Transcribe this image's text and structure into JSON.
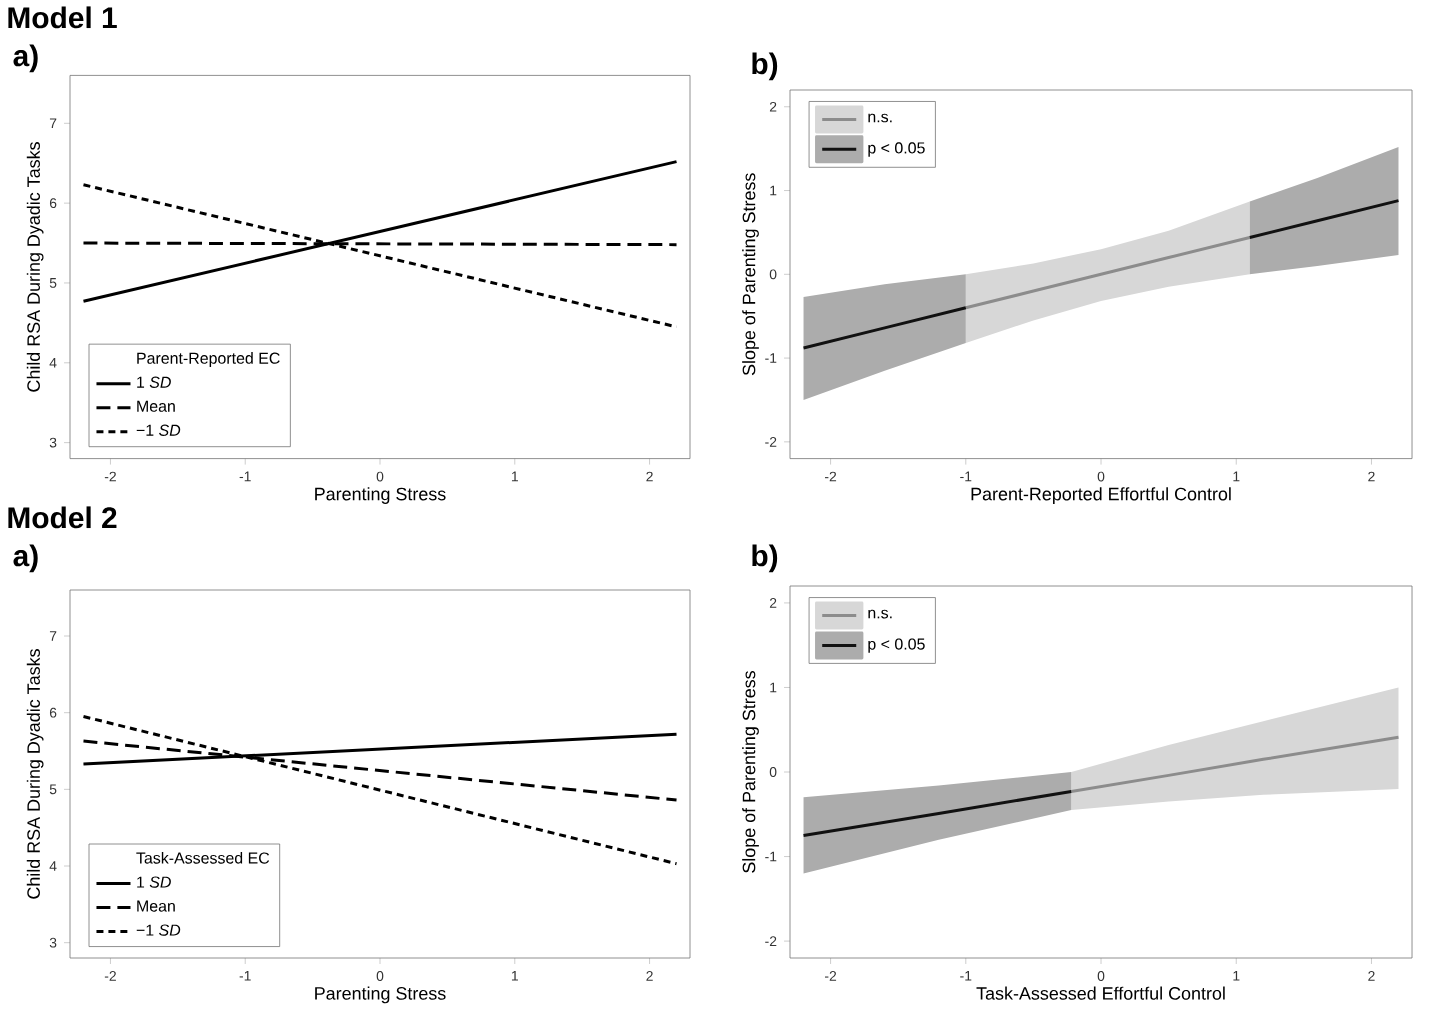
{
  "chart_data": [
    {
      "type": "line",
      "title": "Model 1",
      "subtitle": "a)",
      "xlabel": "Parenting Stress",
      "ylabel": "Child RSA During Dyadic Tasks",
      "legend_title": "Parent-Reported EC",
      "legend": "bottom left",
      "xlim": [
        -2.3,
        2.3
      ],
      "ylim": [
        2.8,
        7.6
      ],
      "xticks": [
        -2,
        -1,
        0,
        1,
        2
      ],
      "yticks": [
        3,
        4,
        5,
        6,
        7
      ],
      "series": [
        {
          "name": "1 *SD*",
          "color": "#000000",
          "line_style": "solid",
          "x": [
            -2.2,
            2.2
          ],
          "values": [
            4.77,
            6.52
          ]
        },
        {
          "name": "Mean",
          "color": "#000000",
          "line_style": "dashed",
          "x": [
            -2.2,
            2.2
          ],
          "values": [
            5.5,
            5.48
          ]
        },
        {
          "name": "−1 *SD*",
          "color": "#000000",
          "line_style": "dotted",
          "x": [
            -2.2,
            2.2
          ],
          "values": [
            6.23,
            4.45
          ]
        }
      ]
    },
    {
      "type": "line",
      "title": "b)",
      "xlabel": "Parent-Reported Effortful Control",
      "ylabel": "Slope of Parenting Stress",
      "legend": "top left",
      "xlim": [
        -2.3,
        2.3
      ],
      "ylim": [
        -2.2,
        2.2
      ],
      "xticks": [
        -2,
        -1,
        0,
        1,
        2
      ],
      "yticks": [
        -2,
        -1,
        0,
        1,
        2
      ],
      "series": [
        {
          "name": "n.s.",
          "color": "#8c8c8c",
          "x": [
            -1,
            -0.5,
            0,
            0.5,
            1.1
          ],
          "values": [
            -0.4,
            -0.2,
            0.0,
            0.2,
            0.44
          ],
          "lower": [
            -0.82,
            -0.55,
            -0.32,
            -0.15,
            0.0
          ],
          "upper": [
            0.0,
            0.13,
            0.3,
            0.52,
            0.87
          ]
        },
        {
          "name": "p < 0.05",
          "color": "#111111",
          "x": [
            -2.2,
            -1.6,
            -1
          ],
          "values": [
            -0.88,
            -0.64,
            -0.4
          ],
          "lower": [
            -1.5,
            -1.15,
            -0.82
          ],
          "upper": [
            -0.27,
            -0.12,
            0.0
          ]
        },
        {
          "color": "#111111",
          "x": [
            1.1,
            1.6,
            2.2
          ],
          "values": [
            0.44,
            0.64,
            0.88
          ],
          "lower": [
            0.0,
            0.1,
            0.23
          ],
          "upper": [
            0.87,
            1.15,
            1.52
          ]
        }
      ]
    },
    {
      "type": "line",
      "title": "Model 2",
      "subtitle": "a)",
      "xlabel": "Parenting Stress",
      "ylabel": "Child RSA During Dyadic Tasks",
      "legend_title": "Task-Assessed EC",
      "legend": "bottom left",
      "xlim": [
        -2.3,
        2.3
      ],
      "ylim": [
        2.8,
        7.6
      ],
      "xticks": [
        -2,
        -1,
        0,
        1,
        2
      ],
      "yticks": [
        3,
        4,
        5,
        6,
        7
      ],
      "series": [
        {
          "name": "1 *SD*",
          "color": "#000000",
          "line_style": "solid",
          "x": [
            -2.2,
            2.2
          ],
          "values": [
            5.33,
            5.72
          ]
        },
        {
          "name": "Mean",
          "color": "#000000",
          "line_style": "dashed",
          "x": [
            -2.2,
            2.2
          ],
          "values": [
            5.63,
            4.86
          ]
        },
        {
          "name": "−1 *SD*",
          "color": "#000000",
          "line_style": "dotted",
          "x": [
            -2.2,
            2.2
          ],
          "values": [
            5.95,
            4.03
          ]
        }
      ]
    },
    {
      "type": "line",
      "title": "b)",
      "xlabel": "Task-Assessed Effortful Control",
      "ylabel": "Slope of Parenting Stress",
      "legend": "top left",
      "xlim": [
        -2.3,
        2.3
      ],
      "ylim": [
        -2.2,
        2.2
      ],
      "xticks": [
        -2,
        -1,
        0,
        1,
        2
      ],
      "yticks": [
        -2,
        -1,
        0,
        1,
        2
      ],
      "series": [
        {
          "name": "n.s.",
          "color": "#8c8c8c",
          "x": [
            -0.22,
            0.5,
            1.2,
            2.2
          ],
          "values": [
            -0.23,
            -0.04,
            0.15,
            0.41
          ],
          "lower": [
            -0.45,
            -0.35,
            -0.27,
            -0.2
          ],
          "upper": [
            0.0,
            0.32,
            0.6,
            1.0
          ]
        },
        {
          "name": "p < 0.05",
          "color": "#111111",
          "x": [
            -2.2,
            -1.2,
            -0.22
          ],
          "values": [
            -0.75,
            -0.49,
            -0.23
          ],
          "lower": [
            -1.2,
            -0.8,
            -0.45
          ],
          "upper": [
            -0.3,
            -0.16,
            0.0
          ]
        }
      ]
    }
  ]
}
